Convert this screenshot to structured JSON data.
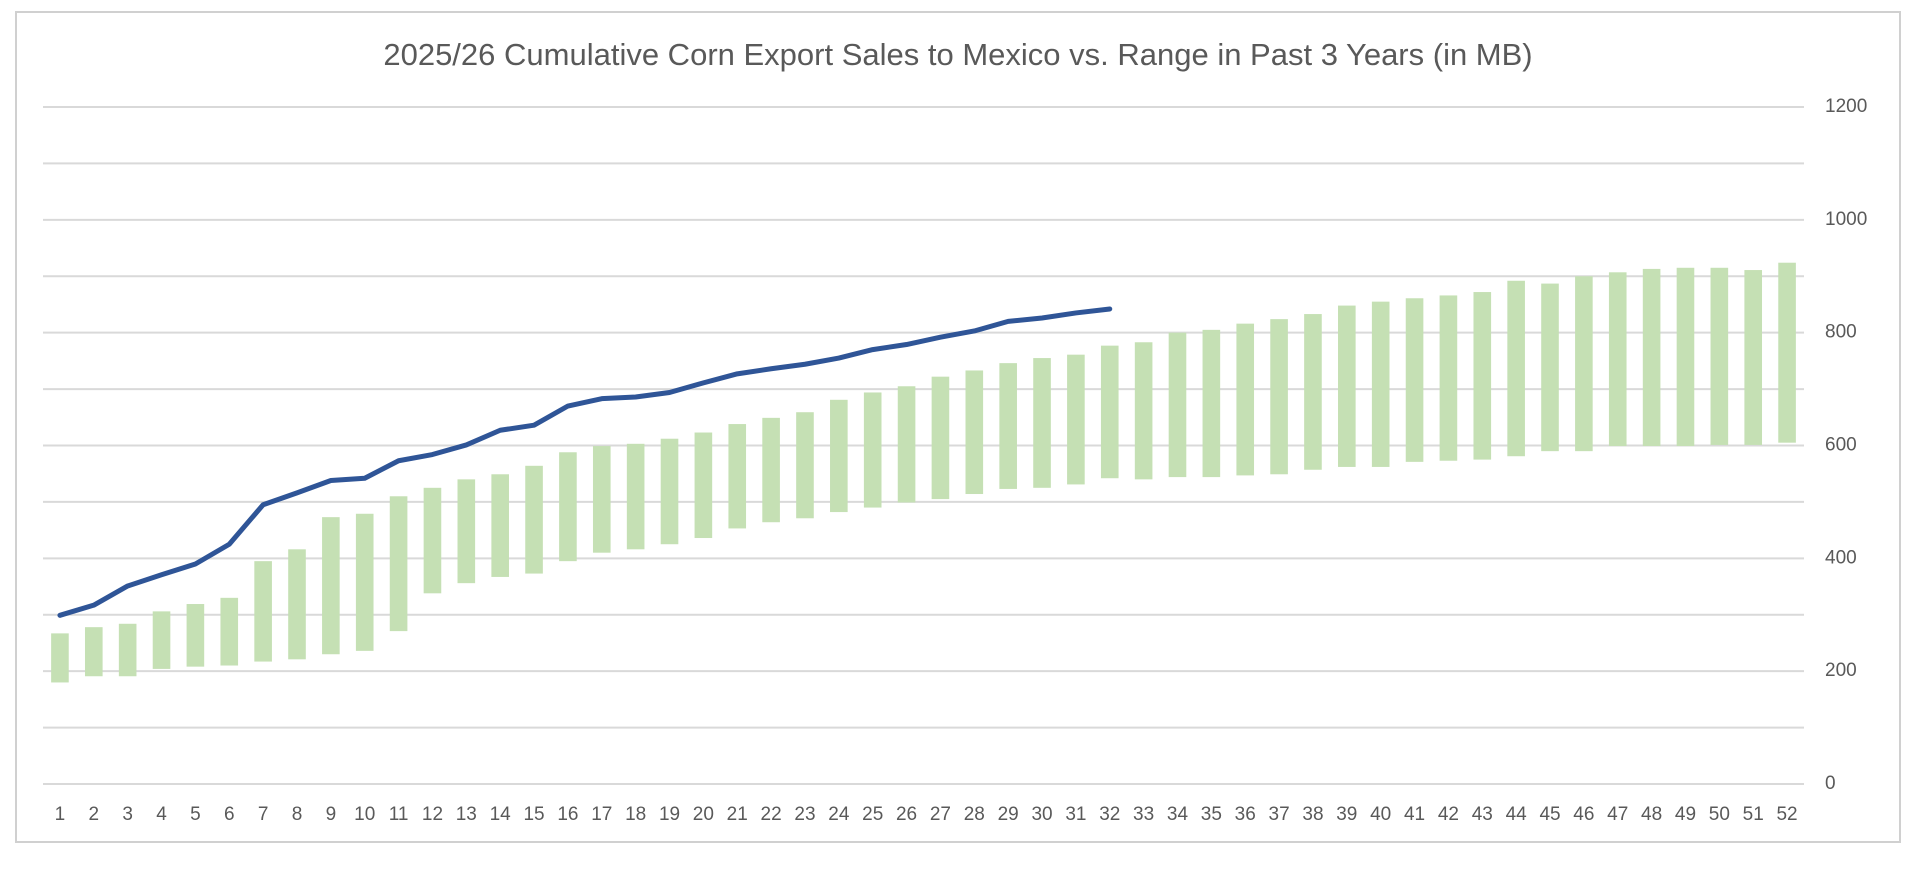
{
  "chart_data": {
    "type": "combo",
    "title": "2025/26 Cumulative Corn Export Sales to Mexico vs. Range in Past 3 Years (in MB)",
    "x": [
      1,
      2,
      3,
      4,
      5,
      6,
      7,
      8,
      9,
      10,
      11,
      12,
      13,
      14,
      15,
      16,
      17,
      18,
      19,
      20,
      21,
      22,
      23,
      24,
      25,
      26,
      27,
      28,
      29,
      30,
      31,
      32,
      33,
      34,
      35,
      36,
      37,
      38,
      39,
      40,
      41,
      42,
      43,
      44,
      45,
      46,
      47,
      48,
      49,
      50,
      51,
      52
    ],
    "xlim": [
      0.5,
      52.5
    ],
    "ylim": [
      0,
      1200
    ],
    "yticks": [
      0,
      200,
      400,
      600,
      800,
      1000,
      1200
    ],
    "minor_yticks": [
      100,
      300,
      500,
      700,
      900,
      1100
    ],
    "grid": true,
    "y_axis_side": "right",
    "series": [
      {
        "type": "range_bar",
        "color": "#c5e0b4",
        "low": [
          180,
          191,
          191,
          204,
          208,
          210,
          217,
          221,
          230,
          236,
          271,
          338,
          356,
          367,
          373,
          395,
          410,
          416,
          425,
          436,
          453,
          464,
          471,
          482,
          490,
          499,
          505,
          514,
          523,
          525,
          531,
          542,
          540,
          544,
          544,
          547,
          549,
          557,
          562,
          562,
          571,
          573,
          575,
          581,
          590,
          590,
          599,
          599,
          599,
          601,
          601,
          605
        ],
        "high": [
          267,
          278,
          284,
          306,
          319,
          330,
          395,
          416,
          473,
          479,
          510,
          525,
          540,
          549,
          564,
          588,
          599,
          603,
          612,
          623,
          638,
          649,
          659,
          681,
          694,
          705,
          722,
          733,
          746,
          755,
          761,
          777,
          783,
          800,
          805,
          816,
          824,
          833,
          848,
          855,
          861,
          866,
          872,
          892,
          887,
          900,
          907,
          913,
          915,
          915,
          911,
          924
        ]
      },
      {
        "type": "line",
        "color": "#2f5597",
        "values": [
          299,
          317,
          351,
          371,
          390,
          425,
          495,
          516,
          538,
          542,
          573,
          584,
          601,
          627,
          636,
          670,
          683,
          686,
          694,
          711,
          727,
          736,
          744,
          755,
          770,
          779,
          792,
          803,
          820,
          826,
          835,
          842,
          null,
          null,
          null,
          null,
          null,
          null,
          null,
          null,
          null,
          null,
          null,
          null,
          null,
          null,
          null,
          null,
          null,
          null,
          null,
          null
        ]
      }
    ]
  }
}
